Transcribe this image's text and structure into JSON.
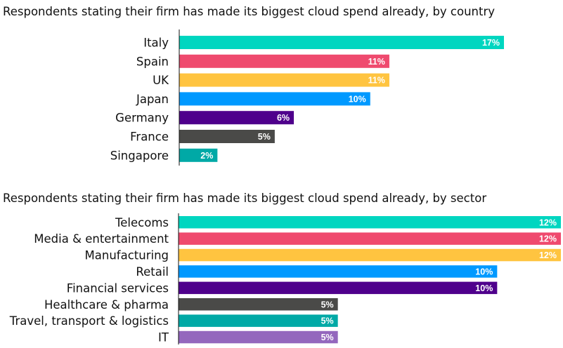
{
  "chart_data": [
    {
      "type": "bar",
      "orientation": "horizontal",
      "title": "Respondents stating their firm has made its biggest cloud spend already, by country",
      "categories": [
        "Italy",
        "Spain",
        "UK",
        "Japan",
        "Germany",
        "France",
        "Singapore"
      ],
      "values": [
        17,
        11,
        11,
        10,
        6,
        5,
        2
      ],
      "value_labels": [
        "17%",
        "11%",
        "11%",
        "10%",
        "6%",
        "5%",
        "2%"
      ],
      "colors": [
        "#00d6c0",
        "#ef4a6e",
        "#ffc440",
        "#0099ff",
        "#4f008c",
        "#4a4a48",
        "#00a9a6"
      ],
      "unit": "%",
      "xlim": [
        0,
        17
      ],
      "grid": false
    },
    {
      "type": "bar",
      "orientation": "horizontal",
      "title": "Respondents stating their firm has made its biggest cloud spend already, by sector",
      "categories": [
        "Telecoms",
        "Media & entertainment",
        "Manufacturing",
        "Retail",
        "Financial services",
        "Healthcare & pharma",
        "Travel, transport & logistics",
        "IT"
      ],
      "values": [
        12,
        12,
        12,
        10,
        10,
        5,
        5,
        5
      ],
      "value_labels": [
        "12%",
        "12%",
        "12%",
        "10%",
        "10%",
        "5%",
        "5%",
        "5%"
      ],
      "colors": [
        "#00d6c0",
        "#ef4a6e",
        "#ffc440",
        "#0099ff",
        "#4f008c",
        "#4a4a48",
        "#00a9a6",
        "#9467bd"
      ],
      "unit": "%",
      "xlim": [
        0,
        12
      ],
      "grid": false
    }
  ]
}
